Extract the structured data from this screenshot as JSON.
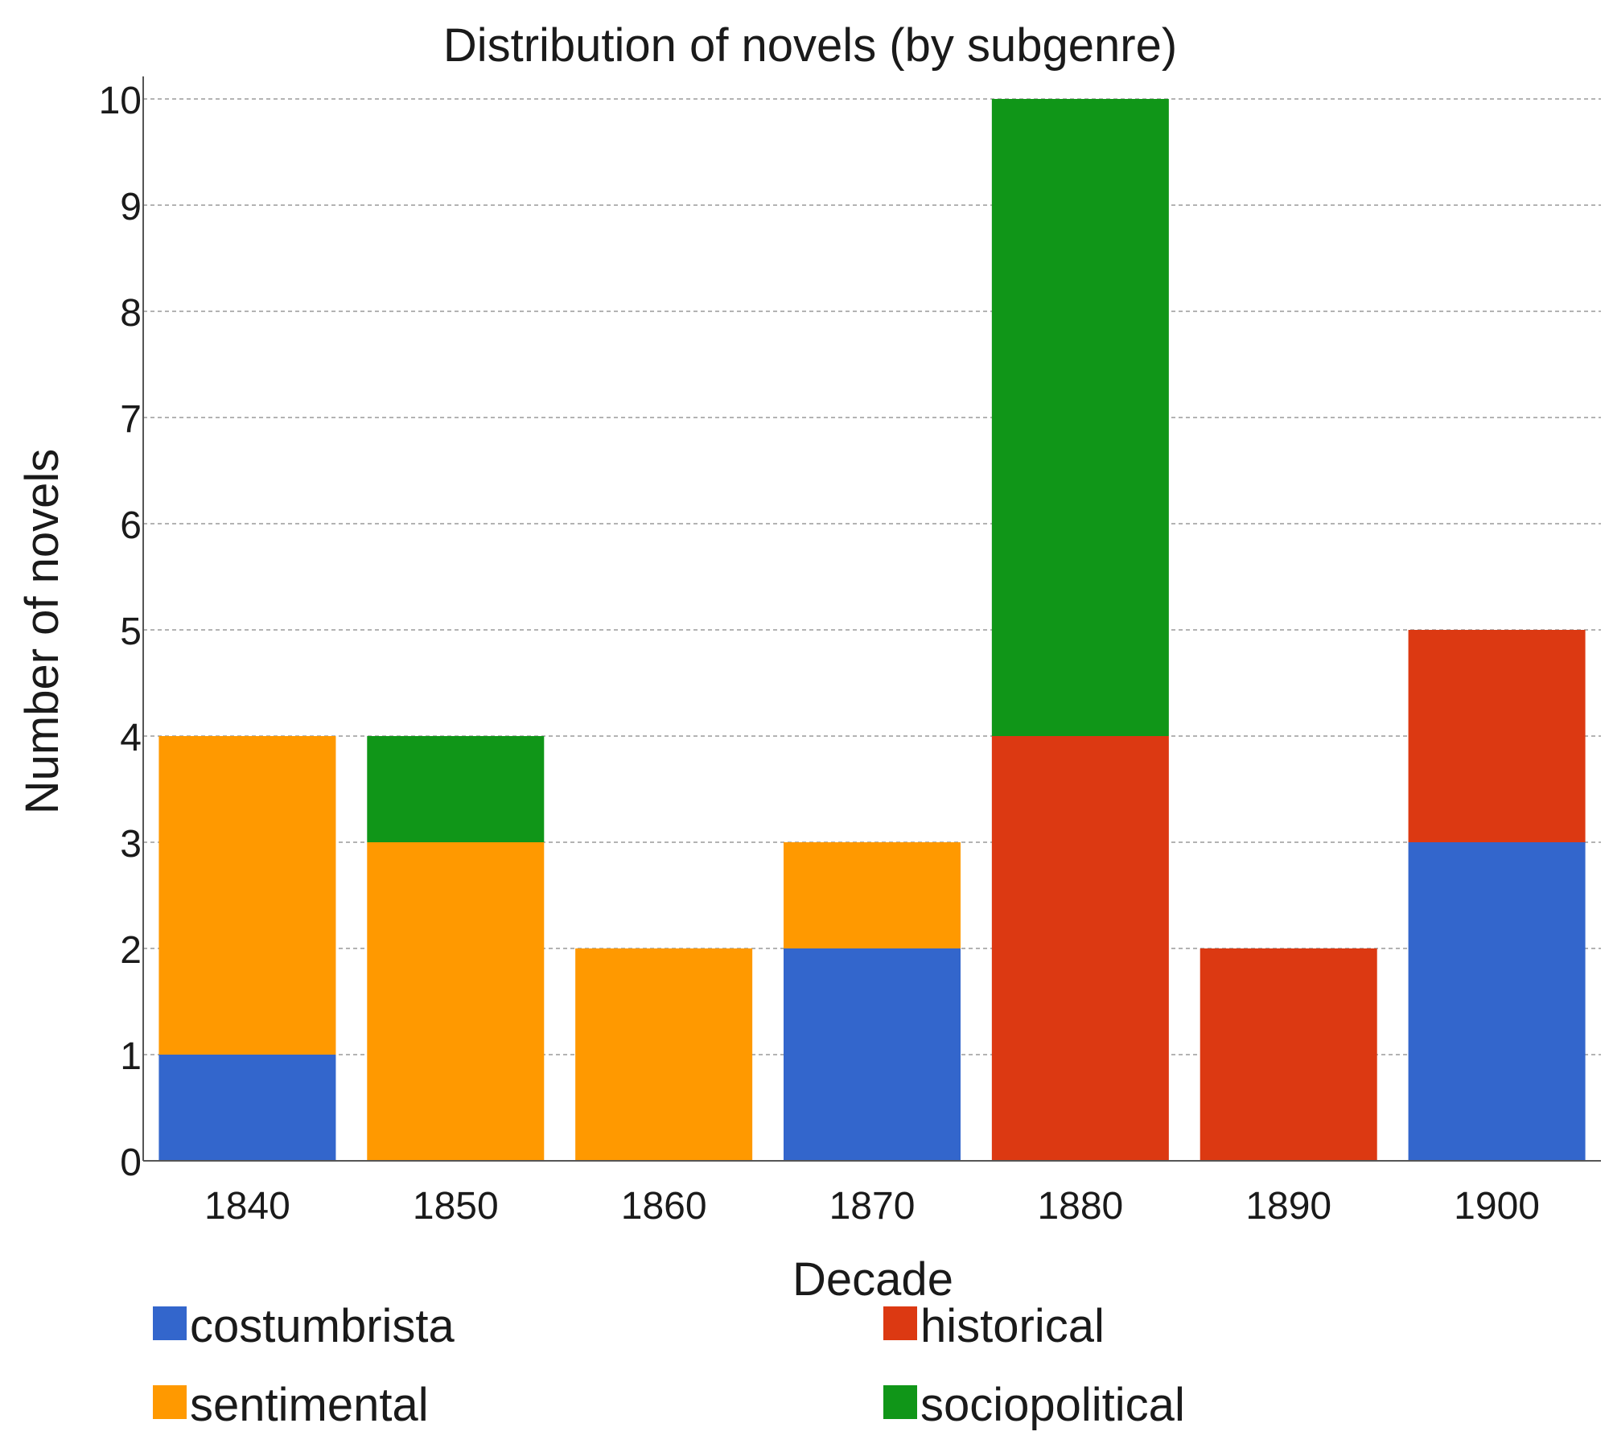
{
  "chart_data": {
    "type": "bar",
    "stacked": true,
    "title": "Distribution of novels (by subgenre)",
    "xlabel": "Decade",
    "ylabel": "Number of novels",
    "categories": [
      "1840",
      "1850",
      "1860",
      "1870",
      "1880",
      "1890",
      "1900"
    ],
    "ylim": [
      0,
      10
    ],
    "yticks": [
      0,
      1,
      2,
      3,
      4,
      5,
      6,
      7,
      8,
      9,
      10
    ],
    "grid": true,
    "legend_position": "bottom",
    "series": [
      {
        "name": "costumbrista",
        "color": "#3366cc",
        "values": [
          1,
          0,
          0,
          2,
          0,
          0,
          3
        ]
      },
      {
        "name": "historical",
        "color": "#dc3912",
        "values": [
          0,
          0,
          0,
          0,
          4,
          2,
          2
        ]
      },
      {
        "name": "sentimental",
        "color": "#ff9900",
        "values": [
          3,
          3,
          2,
          1,
          0,
          0,
          0
        ]
      },
      {
        "name": "sociopolitical",
        "color": "#109618",
        "values": [
          0,
          1,
          0,
          0,
          6,
          0,
          0
        ]
      }
    ]
  }
}
